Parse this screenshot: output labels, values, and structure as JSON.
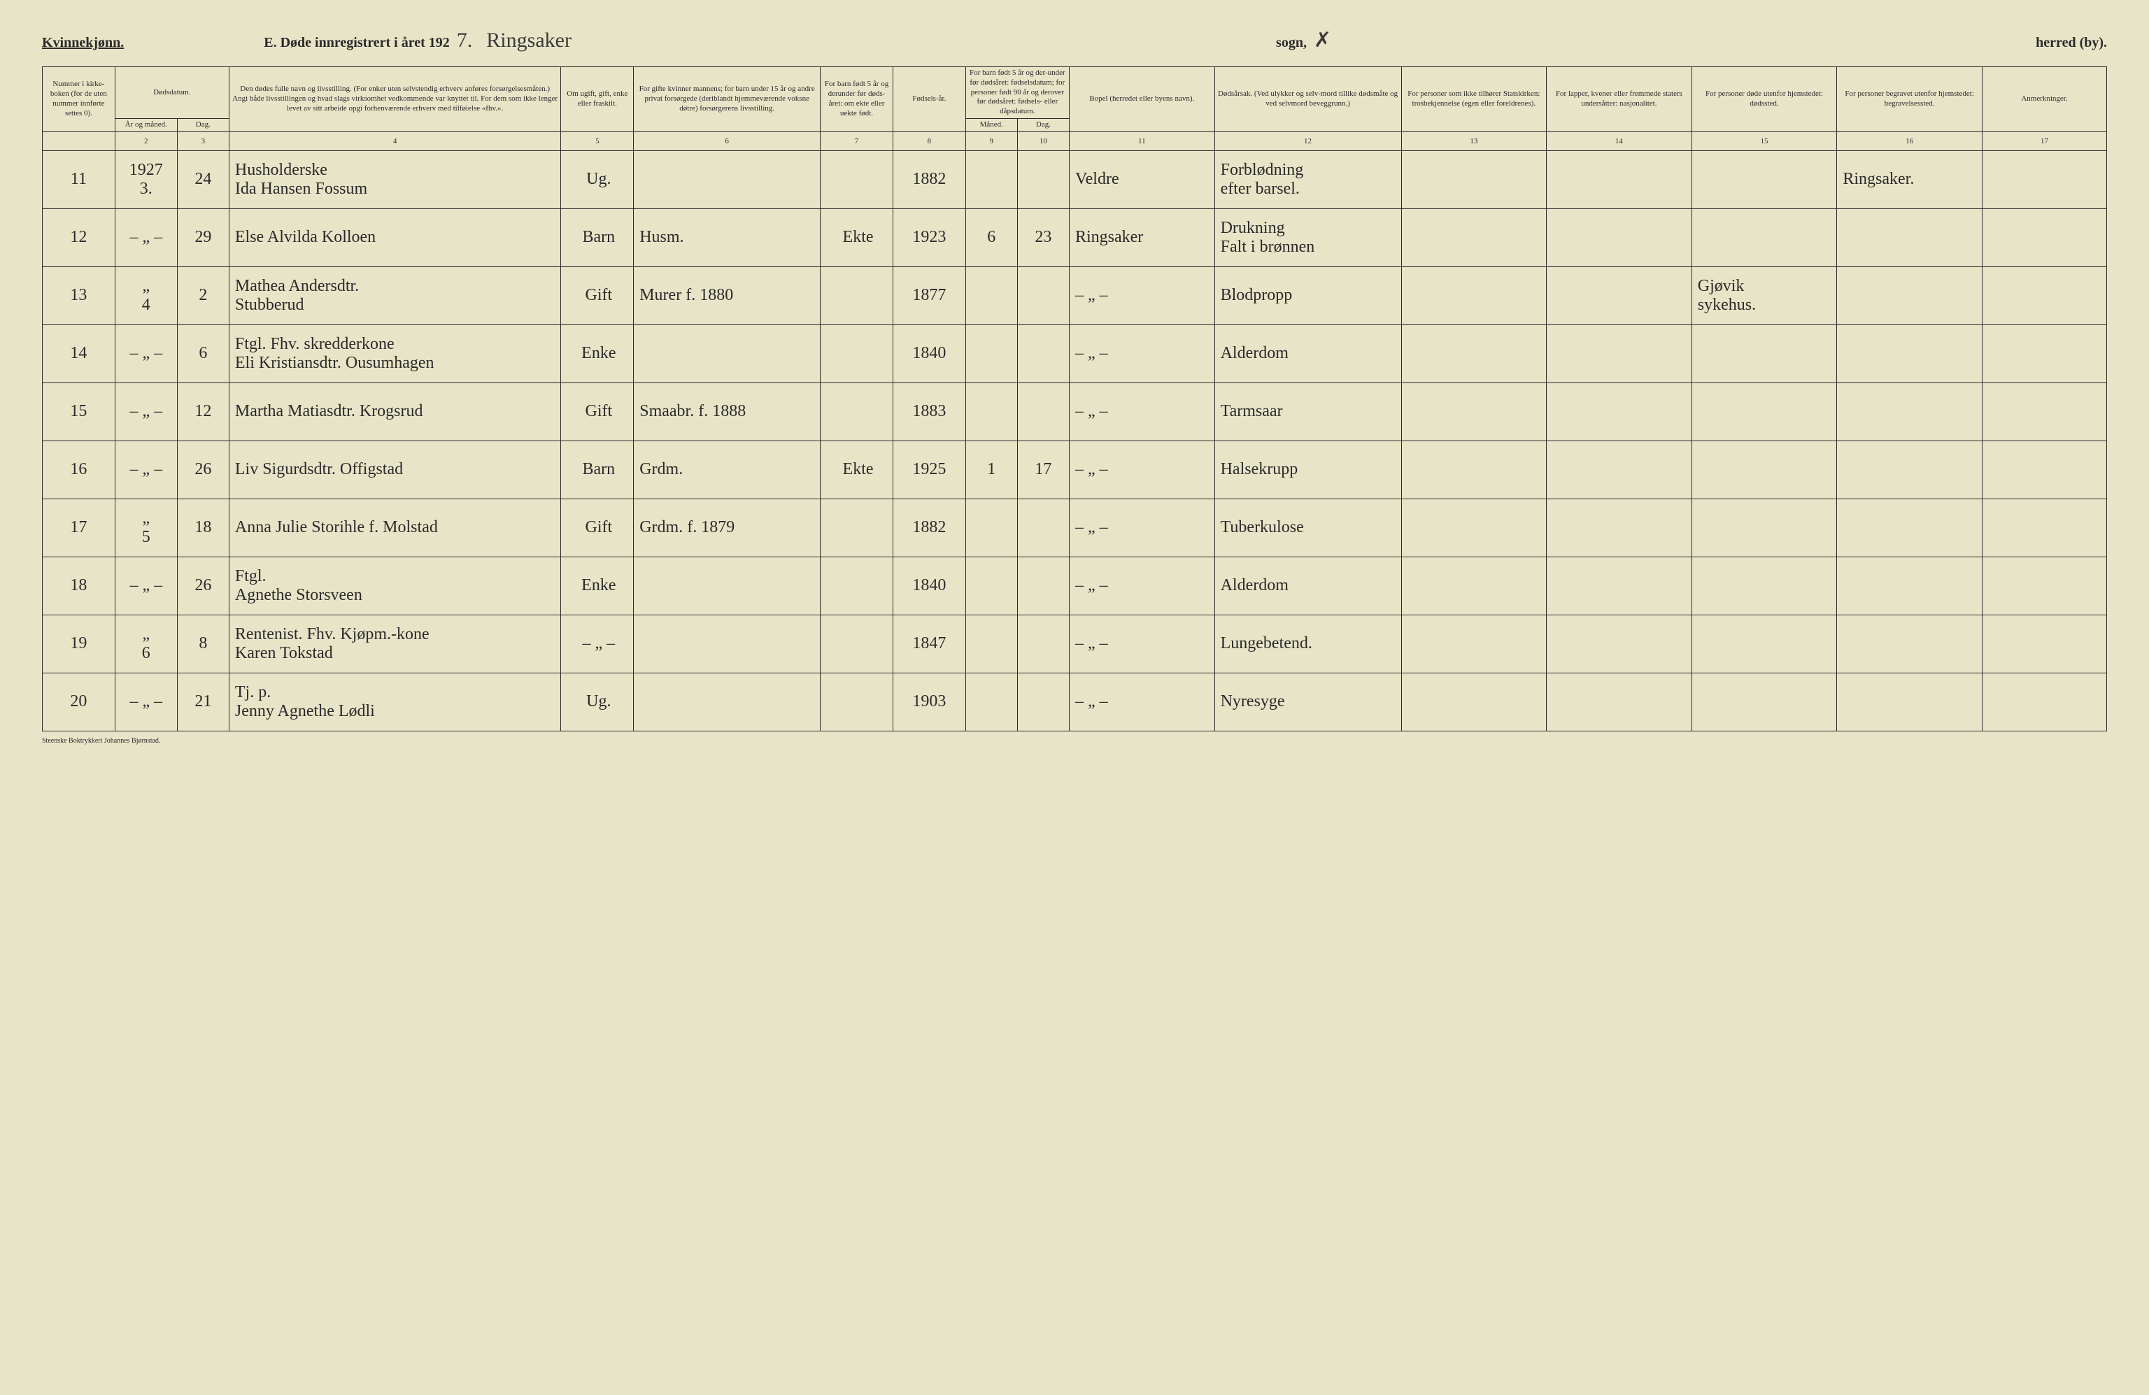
{
  "header": {
    "gender": "Kvinnekjønn.",
    "title_prefix": "E.   Døde innregistrert i året 192",
    "year_suffix": "7.",
    "parish_script": "Ringsaker",
    "sogn_label": "sogn,",
    "sogn_value": "✗",
    "herred_label": "herred (by).",
    "herred_strike": "by"
  },
  "columns": {
    "c1": "Nummer i kirke-boken (for de uten nummer innførte settes 0).",
    "c2_group": "Dødsdatum.",
    "c2a": "År og måned.",
    "c2b": "Dag.",
    "c3": "Den dødes fulle navn og livsstilling. (For enker uten selvstendig erhverv anføres forsørgelsesmåten.) Angi både livsstillingen og hvad slags virksomhet vedkommende var knyttet til. For dem som ikke lenger levet av sitt arbeide opgi forhenværende erhverv med tilføielse «fhv.».",
    "c4": "Om ugift, gift, enke eller fraskilt.",
    "c5": "For gifte kvinner mannens; for barn under 15 år og andre privat forsørgede (deriblandt hjemmeværende voksne døtre) forsørgerens livsstilling.",
    "c6": "For barn født 5 år og derunder før døds-året: om ekte eller uekte født.",
    "c7": "Fødsels-år.",
    "c8_group": "For barn født 5 år og der-under før dødsåret: fødselsdatum; for personer født 90 år og derover før dødsåret: fødsels- eller dåpsdatum.",
    "c8a": "Måned.",
    "c8b": "Dag.",
    "c9": "Bopel (herredet eller byens navn).",
    "c10": "Dødsårsak. (Ved ulykker og selv-mord tillike dødsmåte og ved selvmord beveggrunn.)",
    "c11": "For personer som ikke tilhører Statskirken: trosbekjennelse (egen eller foreldrenes).",
    "c12": "For lapper, kvener eller fremmede staters undersåtter: nasjonalitet.",
    "c13": "For personer døde utenfor hjemstedet: dødssted.",
    "c14": "For personer begravet utenfor hjemstedet: begravelsessted.",
    "c15": "Anmerkninger."
  },
  "colnums": [
    "",
    "2",
    "3",
    "4",
    "5",
    "6",
    "7",
    "8",
    "9",
    "10",
    "11",
    "12",
    "13",
    "14",
    "15",
    "16",
    "17"
  ],
  "rows": [
    {
      "num": "11",
      "ym": "1927\n3.",
      "day": "24",
      "name": "Husholderske\nIda Hansen Fossum",
      "status": "Ug.",
      "provider": "",
      "ekte": "",
      "birth": "1882",
      "bm": "",
      "bd": "",
      "bopel": "Veldre",
      "cause": "Forblødning\nefter barsel.",
      "c11": "",
      "c12": "",
      "c13": "",
      "c14": "Ringsaker.",
      "c15": ""
    },
    {
      "num": "12",
      "ym": "– „ –",
      "day": "29",
      "name": "Else Alvilda Kolloen",
      "status": "Barn",
      "provider": "Husm.",
      "ekte": "Ekte",
      "birth": "1923",
      "bm": "6",
      "bd": "23",
      "bopel": "Ringsaker",
      "cause": "Drukning\nFalt i brønnen",
      "c11": "",
      "c12": "",
      "c13": "",
      "c14": "",
      "c15": ""
    },
    {
      "num": "13",
      "ym": "„\n4",
      "day": "2",
      "name": "Mathea Andersdtr.\nStubberud",
      "status": "Gift",
      "provider": "Murer f. 1880",
      "ekte": "",
      "birth": "1877",
      "bm": "",
      "bd": "",
      "bopel": "– „ –",
      "cause": "Blodpropp",
      "c11": "",
      "c12": "",
      "c13": "Gjøvik\nsykehus.",
      "c14": "",
      "c15": ""
    },
    {
      "num": "14",
      "ym": "– „ –",
      "day": "6",
      "name": "Ftgl. Fhv. skredderkone\nEli Kristiansdtr. Ousumhagen",
      "status": "Enke",
      "provider": "",
      "ekte": "",
      "birth": "1840",
      "bm": "",
      "bd": "",
      "bopel": "– „ –",
      "cause": "Alderdom",
      "c11": "",
      "c12": "",
      "c13": "",
      "c14": "",
      "c15": ""
    },
    {
      "num": "15",
      "ym": "– „ –",
      "day": "12",
      "name": "Martha Matiasdtr. Krogsrud",
      "status": "Gift",
      "provider": "Smaabr. f. 1888",
      "ekte": "",
      "birth": "1883",
      "bm": "",
      "bd": "",
      "bopel": "– „ –",
      "cause": "Tarmsaar",
      "c11": "",
      "c12": "",
      "c13": "",
      "c14": "",
      "c15": ""
    },
    {
      "num": "16",
      "ym": "– „ –",
      "day": "26",
      "name": "Liv Sigurdsdtr. Offigstad",
      "status": "Barn",
      "provider": "Grdm.",
      "ekte": "Ekte",
      "birth": "1925",
      "bm": "1",
      "bd": "17",
      "bopel": "– „ –",
      "cause": "Halsekrupp",
      "c11": "",
      "c12": "",
      "c13": "",
      "c14": "",
      "c15": ""
    },
    {
      "num": "17",
      "ym": "„\n5",
      "day": "18",
      "name": "Anna Julie Storihle f. Molstad",
      "status": "Gift",
      "provider": "Grdm. f. 1879",
      "ekte": "",
      "birth": "1882",
      "bm": "",
      "bd": "",
      "bopel": "– „ –",
      "cause": "Tuberkulose",
      "c11": "",
      "c12": "",
      "c13": "",
      "c14": "",
      "c15": ""
    },
    {
      "num": "18",
      "ym": "– „ –",
      "day": "26",
      "name": "Ftgl.\nAgnethe Storsveen",
      "status": "Enke",
      "provider": "",
      "ekte": "",
      "birth": "1840",
      "bm": "",
      "bd": "",
      "bopel": "– „ –",
      "cause": "Alderdom",
      "c11": "",
      "c12": "",
      "c13": "",
      "c14": "",
      "c15": ""
    },
    {
      "num": "19",
      "ym": "„\n6",
      "day": "8",
      "name": "Rentenist. Fhv. Kjøpm.-kone\nKaren Tokstad",
      "status": "– „ –",
      "provider": "",
      "ekte": "",
      "birth": "1847",
      "bm": "",
      "bd": "",
      "bopel": "– „ –",
      "cause": "Lungebetend.",
      "c11": "",
      "c12": "",
      "c13": "",
      "c14": "",
      "c15": ""
    },
    {
      "num": "20",
      "ym": "– „ –",
      "day": "21",
      "name": "Tj. p.\nJenny Agnethe Lødli",
      "status": "Ug.",
      "provider": "",
      "ekte": "",
      "birth": "1903",
      "bm": "",
      "bd": "",
      "bopel": "– „ –",
      "cause": "Nyresyge",
      "c11": "",
      "c12": "",
      "c13": "",
      "c14": "",
      "c15": ""
    }
  ],
  "footer": "Steenske Boktrykkeri Johannes Bjørnstad."
}
